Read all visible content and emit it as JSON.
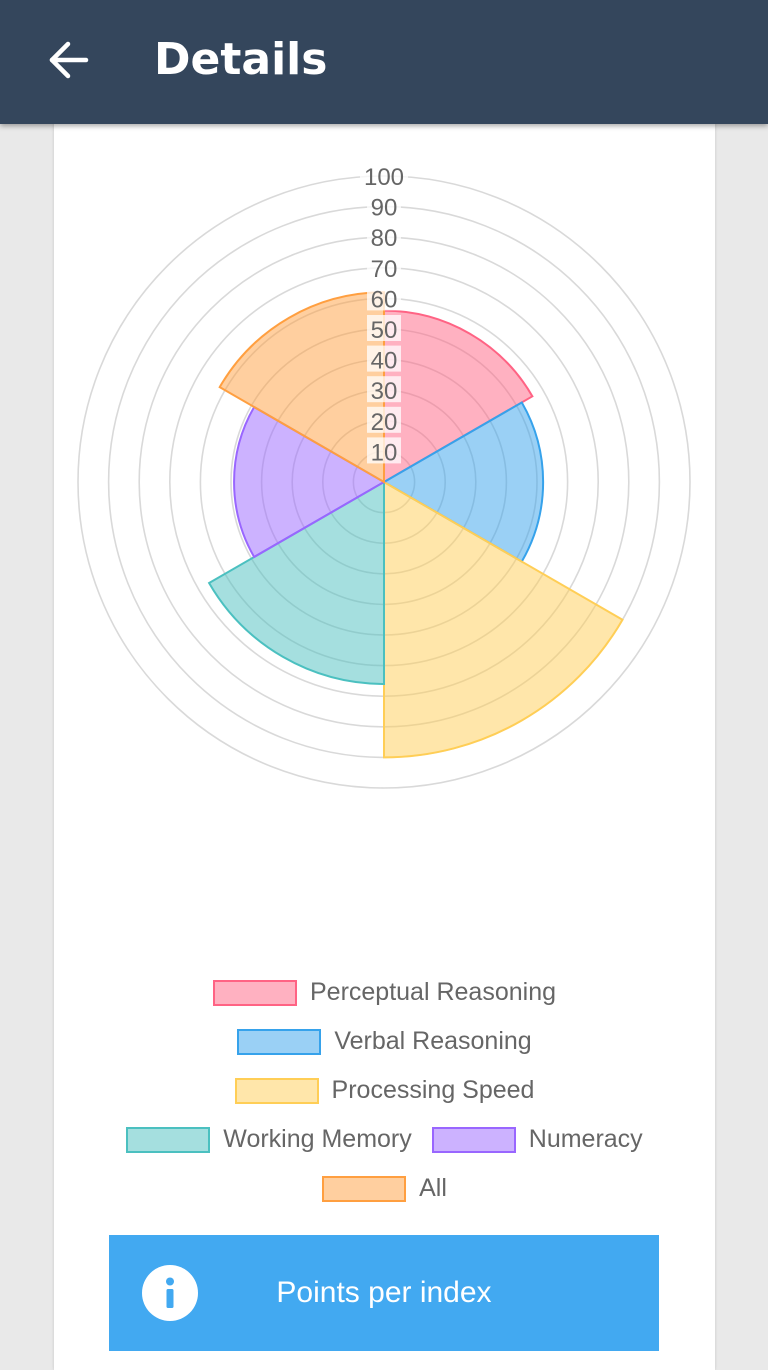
{
  "header": {
    "title": "Details",
    "back_icon": "arrow-left-icon"
  },
  "chart_data": {
    "type": "polarArea",
    "scale": {
      "min": 0,
      "max": 100,
      "ticks": [
        10,
        20,
        30,
        40,
        50,
        60,
        70,
        80,
        90,
        100
      ]
    },
    "series": [
      {
        "name": "Perceptual Reasoning",
        "value": 56,
        "fill": "rgba(255,99,132,0.5)",
        "stroke": "#ff6384"
      },
      {
        "name": "Verbal Reasoning",
        "value": 52,
        "fill": "rgba(54,162,235,0.5)",
        "stroke": "#36a2eb"
      },
      {
        "name": "Processing Speed",
        "value": 90,
        "fill": "rgba(255,206,86,0.5)",
        "stroke": "#ffce56"
      },
      {
        "name": "Working Memory",
        "value": 66,
        "fill": "rgba(75,192,192,0.5)",
        "stroke": "#4bc0c0"
      },
      {
        "name": "Numeracy",
        "value": 49,
        "fill": "rgba(153,102,255,0.5)",
        "stroke": "#9966ff"
      },
      {
        "name": "All",
        "value": 62,
        "fill": "rgba(255,159,64,0.5)",
        "stroke": "#ff9f40"
      }
    ],
    "grid": true,
    "legend_position": "bottom"
  },
  "info_button": {
    "label": "Points per index",
    "icon": "info-icon"
  },
  "colors": {
    "appbar": "#34465c",
    "button": "#42a9f1"
  }
}
